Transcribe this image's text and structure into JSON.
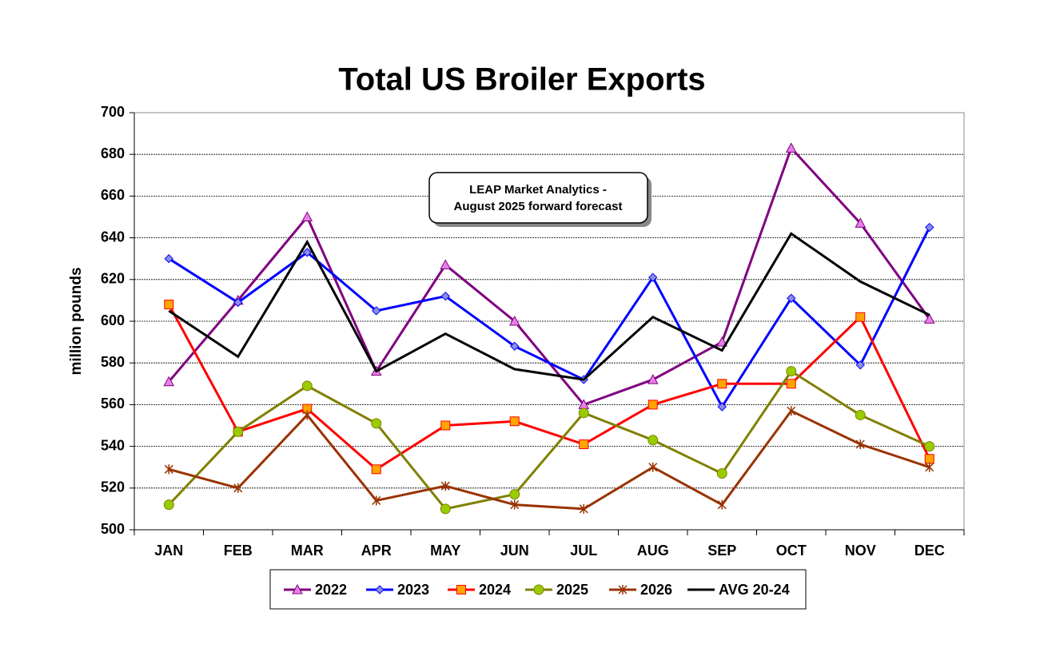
{
  "chart_data": {
    "type": "line",
    "title": "Total US Broiler Exports",
    "y_label": "million pounds",
    "annotation": [
      "LEAP Market Analytics -",
      "August 2025 forward forecast"
    ],
    "categories": [
      "JAN",
      "FEB",
      "MAR",
      "APR",
      "MAY",
      "JUN",
      "JUL",
      "AUG",
      "SEP",
      "OCT",
      "NOV",
      "DEC"
    ],
    "ylim": [
      500,
      700
    ],
    "yticks": [
      500,
      520,
      540,
      560,
      580,
      600,
      620,
      640,
      660,
      680,
      700
    ],
    "grid": true,
    "legend": "bottom",
    "series": [
      {
        "name": "2022",
        "color": "#800080",
        "marker": "triangle",
        "marker_color": "#e680e6",
        "values": [
          571,
          610,
          650,
          576,
          627,
          600,
          560,
          572,
          590,
          683,
          647,
          601
        ]
      },
      {
        "name": "2023",
        "color": "#0000ff",
        "marker": "diamond",
        "marker_color": "#8c8ce6",
        "values": [
          630,
          609,
          633,
          605,
          612,
          588,
          572,
          621,
          559,
          611,
          579,
          645
        ]
      },
      {
        "name": "2024",
        "color": "#ff0000",
        "marker": "square",
        "marker_color": "#ffa500",
        "values": [
          608,
          547,
          558,
          529,
          550,
          552,
          541,
          560,
          570,
          570,
          602,
          534
        ]
      },
      {
        "name": "2025",
        "color": "#808000",
        "marker": "circle",
        "marker_color": "#99cc00",
        "values": [
          512,
          547,
          569,
          551,
          510,
          517,
          556,
          543,
          527,
          576,
          555,
          540
        ]
      },
      {
        "name": "2026",
        "color": "#993300",
        "marker": "star",
        "marker_color": "#993300",
        "values": [
          529,
          520,
          555,
          514,
          521,
          512,
          510,
          530,
          512,
          557,
          541,
          530
        ]
      },
      {
        "name": "AVG 20-24",
        "color": "#000000",
        "marker": "none",
        "marker_color": "#000000",
        "values": [
          605,
          583,
          638,
          576,
          594,
          577,
          572,
          602,
          586,
          642,
          619,
          603
        ]
      }
    ]
  }
}
